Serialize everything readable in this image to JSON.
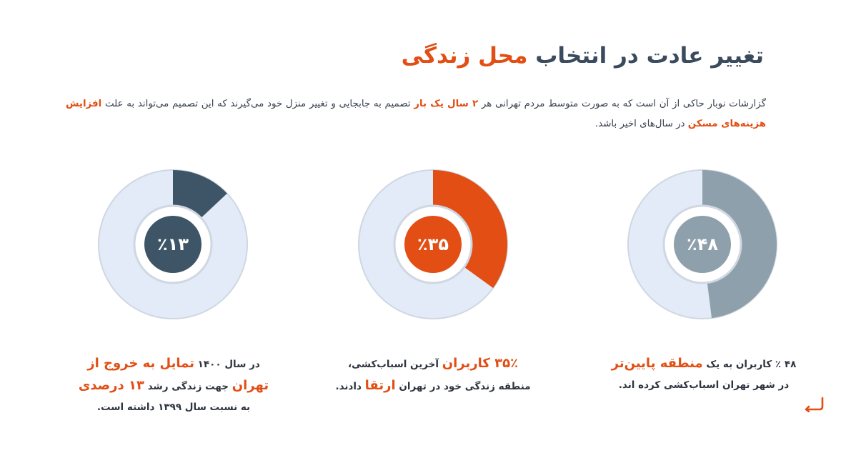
{
  "title": {
    "main": "تغییر عادت در انتخاب ",
    "highlight": "محل زندگی"
  },
  "intro": {
    "part1": "گزارشات نوبار حاکی از آن است که به صورت متوسط مردم تهرانی هر ",
    "hl1": "۲ سال یک بار",
    "part2": " تصمیم به جابجایی و تغییر منزل خود می‌گیرند که این تصمیم می‌تواند به علت ",
    "hl2": "افزایش هزینه‌های مسکن",
    "part3": " در سال‌های اخیر باشد."
  },
  "colors": {
    "track": "#e3ebf8",
    "track_edge": "#cfd7e2",
    "accent": "#e24e13",
    "slate": "#3d5566",
    "gray_blue": "#8ea0ab"
  },
  "chart_data": [
    {
      "type": "pie",
      "label": "٪۴۸",
      "values": [
        48,
        52
      ],
      "color": "#8ea0ab"
    },
    {
      "type": "pie",
      "label": "٪۳۵",
      "values": [
        35,
        65
      ],
      "color": "#e24e13"
    },
    {
      "type": "pie",
      "label": "٪۱۳",
      "values": [
        13,
        87
      ],
      "color": "#3d5566"
    }
  ],
  "captions": {
    "c1": {
      "t1": "۴۸ ٪ کاربران به یک ",
      "h1": "منطقه پایین‌تر",
      "t2": " در شهر تهران اسباب‌کشی کرده اند."
    },
    "c2": {
      "h0": "۳۵٪ کاربران",
      "t1": " آخرین اسباب‌کشی، منطقه زندگی خود در تهران ",
      "h1": "ارتقا",
      "t2": " دادند."
    },
    "c3": {
      "t1": "در سال ۱۴۰۰ ",
      "h1": "تمایل به خروج از تهران",
      "t2": " جهت زندگی رشد ",
      "h2": "۱۳ درصدی",
      "t3": " به نسبت سال ۱۳۹۹ داشته است."
    }
  }
}
